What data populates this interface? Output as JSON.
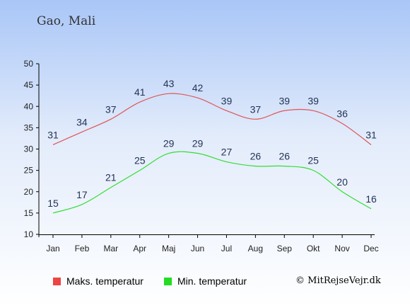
{
  "location": "Gao, Mali",
  "copyright": "© MitRejseVejr.dk",
  "colors": {
    "max_line": "#e05555",
    "min_line": "#33dd33",
    "max_swatch": "#ee4444",
    "min_swatch": "#22dd22",
    "axis": "#000000",
    "label": "#223355"
  },
  "chart_data": {
    "type": "line",
    "title": "",
    "xlabel": "",
    "ylabel": "",
    "categories": [
      "Jan",
      "Feb",
      "Mar",
      "Apr",
      "Maj",
      "Jun",
      "Jul",
      "Aug",
      "Sep",
      "Okt",
      "Nov",
      "Dec"
    ],
    "ylim": [
      10,
      50
    ],
    "yticks": [
      10,
      15,
      20,
      25,
      30,
      35,
      40,
      45,
      50
    ],
    "grid": false,
    "legend_position": "bottom",
    "series": [
      {
        "name": "Maks. temperatur",
        "color": "#e05555",
        "values": [
          31,
          34,
          37,
          41,
          43,
          42,
          39,
          37,
          39,
          39,
          36,
          31
        ]
      },
      {
        "name": "Min. temperatur",
        "color": "#33dd33",
        "values": [
          15,
          17,
          21,
          25,
          29,
          29,
          27,
          26,
          26,
          25,
          20,
          16
        ]
      }
    ]
  }
}
